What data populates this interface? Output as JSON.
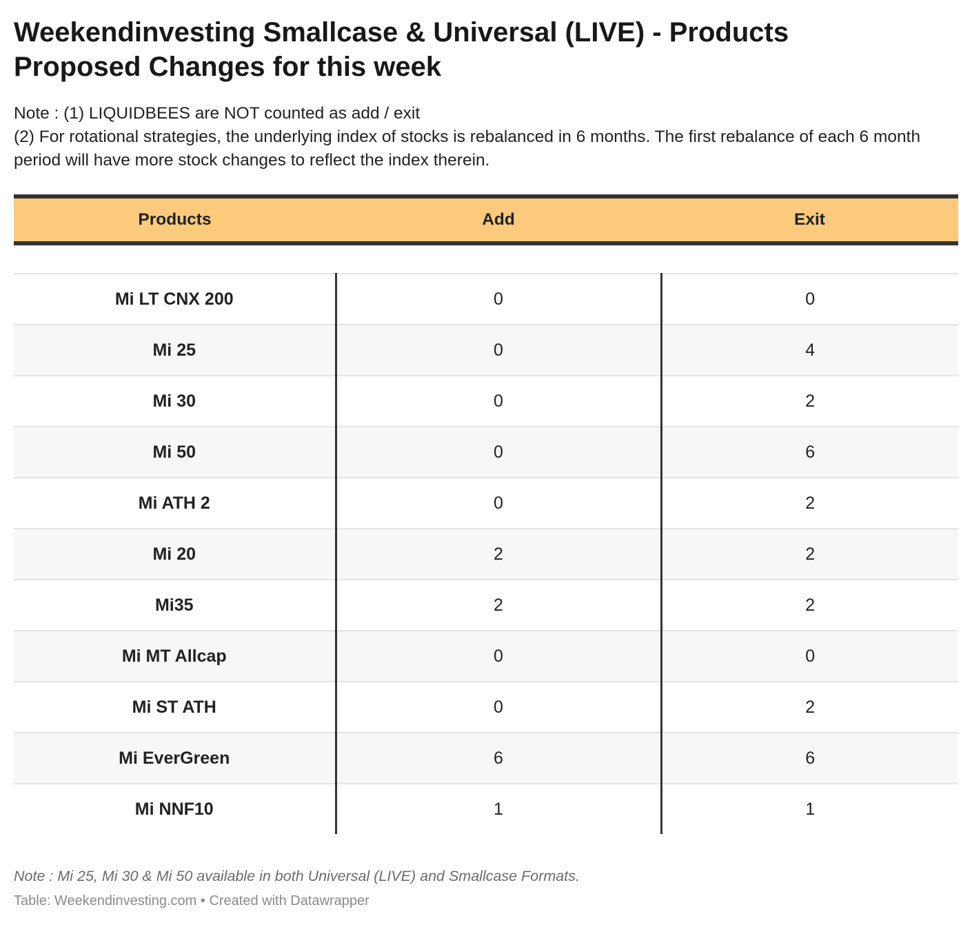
{
  "chart_data": {
    "type": "table",
    "title": "Weekendinvesting Smallcase & Universal (LIVE) - Products Proposed Changes for this week",
    "notes": [
      "Note : (1) LIQUIDBEES are NOT counted as add / exit",
      "(2) For rotational strategies, the underlying index of stocks is rebalanced in 6 months. The first rebalance of each 6 month period will have more stock changes to reflect the index therein."
    ],
    "columns": [
      "Products",
      "Add",
      "Exit"
    ],
    "rows": [
      {
        "product": "Mi LT CNX 200",
        "add": "0",
        "exit": "0"
      },
      {
        "product": "Mi 25",
        "add": "0",
        "exit": "4"
      },
      {
        "product": "Mi 30",
        "add": "0",
        "exit": "2"
      },
      {
        "product": "Mi 50",
        "add": "0",
        "exit": "6"
      },
      {
        "product": "Mi ATH 2",
        "add": "0",
        "exit": "2"
      },
      {
        "product": "Mi 20",
        "add": "2",
        "exit": "2"
      },
      {
        "product": "Mi35",
        "add": "2",
        "exit": "2"
      },
      {
        "product": "Mi MT Allcap",
        "add": "0",
        "exit": "0"
      },
      {
        "product": "Mi ST ATH",
        "add": "0",
        "exit": "2"
      },
      {
        "product": "Mi EverGreen",
        "add": "6",
        "exit": "6"
      },
      {
        "product": "Mi NNF10",
        "add": "1",
        "exit": "1"
      }
    ],
    "footer_note": "Note : Mi 25, Mi 30 & Mi 50 available in both Universal (LIVE) and Smallcase Formats.",
    "credit": "Table: Weekendinvesting.com • Created with Datawrapper"
  },
  "colors": {
    "header_background": "#fcca7d",
    "rule": "#333333",
    "stripe": "#f7f7f7"
  }
}
